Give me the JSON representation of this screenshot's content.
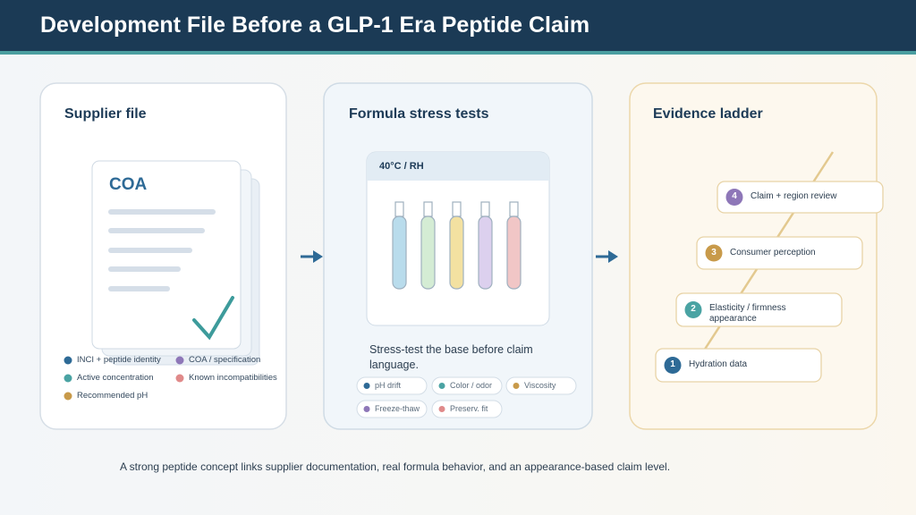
{
  "header": {
    "title": "Development File Before a GLP-1 Era Peptide Claim"
  },
  "panels": [
    {
      "title": "Supplier file",
      "document_label": "COA",
      "legend": [
        "INCI + peptide identity",
        "COA / specification",
        "Active concentration",
        "Known incompatibilities",
        "Recommended pH"
      ]
    },
    {
      "title": "Formula stress tests",
      "chamber_label": "40°C / RH",
      "caption": "Stress-test the base before claim language.",
      "chips": [
        "pH drift",
        "Color / odor",
        "Viscosity",
        "Freeze-thaw",
        "Preserv. fit"
      ]
    },
    {
      "title": "Evidence ladder",
      "steps": [
        {
          "number": "1",
          "label": "Hydration data"
        },
        {
          "number": "2",
          "label": "Elasticity / firmness appearance"
        },
        {
          "number": "3",
          "label": "Consumer perception"
        },
        {
          "number": "4",
          "label": "Claim + region review"
        }
      ]
    }
  ],
  "footer": "A strong peptide concept links supplier documentation, real formula behavior, and an appearance-based claim level."
}
